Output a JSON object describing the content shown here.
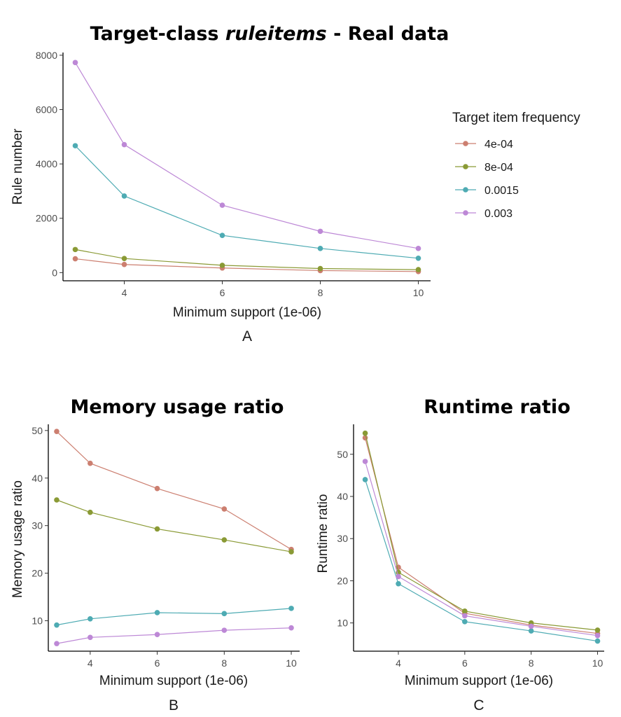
{
  "chart_data": [
    {
      "type": "line",
      "panel_label": "A",
      "title": "Target-class ",
      "title_italic": "ruleitems",
      "title_suffix": " - Real data",
      "xlabel": "Minimum support (1e-06)",
      "ylabel": "Rule number",
      "x": [
        3,
        4,
        6,
        8,
        10
      ],
      "xticks": [
        4,
        6,
        8,
        10
      ],
      "yticks": [
        0,
        2000,
        4000,
        6000,
        8000
      ],
      "xlim": [
        2.75,
        10.25
      ],
      "ylim": [
        -300,
        8100
      ],
      "grid": false,
      "legend_position": "right",
      "series": [
        {
          "name": "4e-04",
          "color": "#cc7f70",
          "values": [
            510,
            300,
            170,
            75,
            40
          ]
        },
        {
          "name": "8e-04",
          "color": "#8a9a35",
          "values": [
            850,
            520,
            270,
            150,
            110
          ]
        },
        {
          "name": "0.0015",
          "color": "#4eabb3",
          "values": [
            4670,
            2820,
            1370,
            890,
            530
          ]
        },
        {
          "name": "0.003",
          "color": "#bd88d6",
          "values": [
            7730,
            4710,
            2480,
            1520,
            890
          ]
        }
      ]
    },
    {
      "type": "line",
      "panel_label": "B",
      "title": "Memory usage ratio",
      "xlabel": "Minimum support (1e-06)",
      "ylabel": "Memory usage ratio",
      "x": [
        3,
        4,
        6,
        8,
        10
      ],
      "xticks": [
        4,
        6,
        8,
        10
      ],
      "yticks": [
        10,
        20,
        30,
        40,
        50
      ],
      "xlim": [
        2.75,
        10.25
      ],
      "ylim": [
        3.6,
        51.3
      ],
      "grid": false,
      "series": [
        {
          "name": "4e-04",
          "color": "#cc7f70",
          "values": [
            49.8,
            43.1,
            37.8,
            33.5,
            25.0
          ]
        },
        {
          "name": "8e-04",
          "color": "#8a9a35",
          "values": [
            35.4,
            32.8,
            29.3,
            27.0,
            24.5
          ]
        },
        {
          "name": "0.0015",
          "color": "#4eabb3",
          "values": [
            9.1,
            10.4,
            11.7,
            11.5,
            12.6
          ]
        },
        {
          "name": "0.003",
          "color": "#bd88d6",
          "values": [
            5.2,
            6.5,
            7.1,
            8.0,
            8.5
          ]
        }
      ]
    },
    {
      "type": "line",
      "panel_label": "C",
      "title": "Runtime ratio",
      "xlabel": "Minimum support (1e-06)",
      "ylabel": "Runtime ratio",
      "x": [
        3,
        4,
        6,
        8,
        10
      ],
      "xticks": [
        4,
        6,
        8,
        10
      ],
      "yticks": [
        10,
        20,
        30,
        40,
        50
      ],
      "xlim": [
        2.65,
        10.2
      ],
      "ylim": [
        3.3,
        57.1
      ],
      "grid": false,
      "series": [
        {
          "name": "4e-04",
          "color": "#cc7f70",
          "values": [
            53.9,
            23.2,
            12.3,
            9.5,
            7.5
          ]
        },
        {
          "name": "8e-04",
          "color": "#8a9a35",
          "values": [
            55.0,
            22.0,
            12.8,
            10.0,
            8.3
          ]
        },
        {
          "name": "0.0015",
          "color": "#4eabb3",
          "values": [
            44.0,
            19.3,
            10.3,
            8.1,
            5.7
          ]
        },
        {
          "name": "0.003",
          "color": "#bd88d6",
          "values": [
            48.3,
            21.0,
            11.7,
            9.2,
            7.0
          ]
        }
      ]
    }
  ],
  "legend": {
    "title": "Target item frequency",
    "items": [
      "4e-04",
      "8e-04",
      "0.0015",
      "0.003"
    ]
  }
}
